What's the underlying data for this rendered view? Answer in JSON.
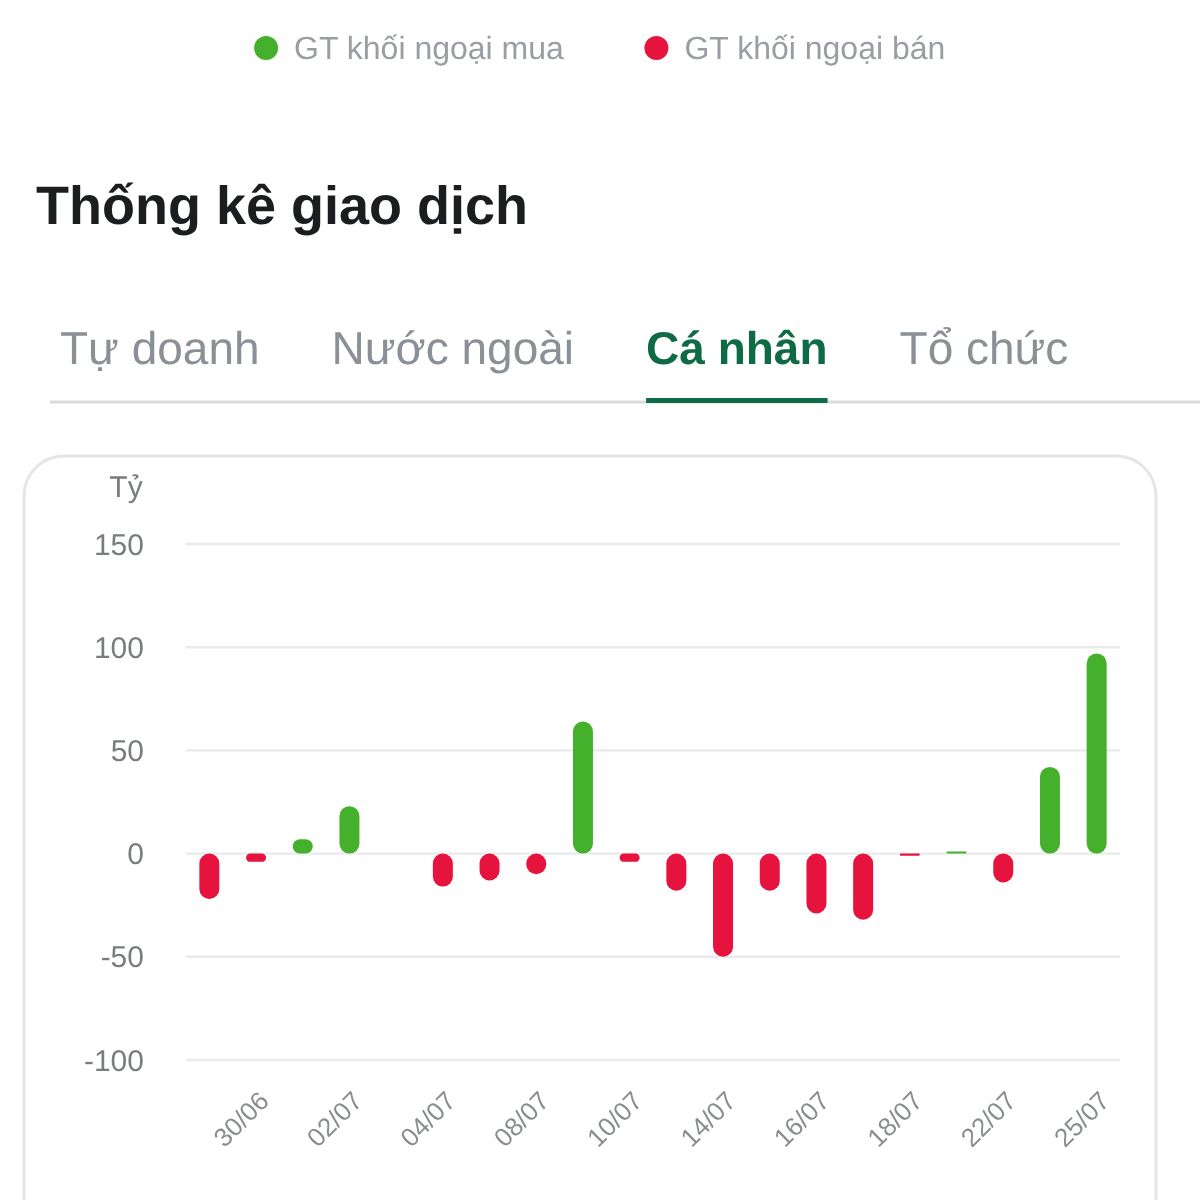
{
  "chart_data": {
    "type": "bar",
    "title": "Thống kê giao dịch",
    "ylabel": "Tỷ",
    "annotations": [
      "Tự doanh",
      "Nước ngoài",
      "Cá nhân",
      "Tổ chức"
    ],
    "categories": [
      null,
      "30/06",
      null,
      "02/07",
      null,
      "04/07",
      null,
      "08/07",
      null,
      "10/07",
      null,
      "14/07",
      null,
      "16/07",
      null,
      "18/07",
      null,
      "22/07",
      null,
      "25/07"
    ],
    "stacked": true,
    "legend": "top",
    "series": [
      {
        "name": "GT khối ngoại mua",
        "color": "#45b02b",
        "values": [
          null,
          null,
          7,
          23,
          null,
          null,
          null,
          null,
          64,
          null,
          null,
          null,
          null,
          null,
          null,
          null,
          1,
          null,
          42,
          97
        ]
      },
      {
        "name": "GT khối ngoại bán",
        "color": "#e6133f",
        "values": [
          -22,
          -4,
          null,
          null,
          null,
          -16,
          -13,
          -10,
          null,
          -4,
          -18,
          -50,
          -18,
          -29,
          -32,
          -1,
          null,
          -14,
          null,
          null
        ]
      }
    ],
    "ylim": [
      -100,
      150
    ],
    "yticks": [
      -100,
      -50,
      0,
      50,
      100,
      150
    ],
    "grid": "y"
  }
}
